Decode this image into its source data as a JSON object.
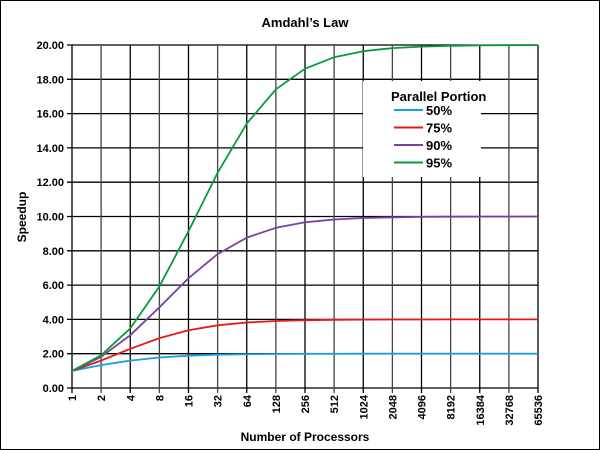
{
  "chart_data": {
    "type": "line",
    "title": "Amdahl’s Law",
    "xlabel": "Number of Processors",
    "ylabel": "Speedup",
    "x_scale": "log2",
    "categories": [
      "1",
      "2",
      "4",
      "8",
      "16",
      "32",
      "64",
      "128",
      "256",
      "512",
      "1024",
      "2048",
      "4096",
      "8192",
      "16384",
      "32768",
      "65536"
    ],
    "y_ticks": [
      "0.00",
      "2.00",
      "4.00",
      "6.00",
      "8.00",
      "10.00",
      "12.00",
      "14.00",
      "16.00",
      "18.00",
      "20.00"
    ],
    "ylim": [
      0,
      20
    ],
    "grid": true,
    "legend": {
      "title": "Parallel Portion",
      "position": "upper right inside"
    },
    "series": [
      {
        "name": "50%",
        "color": "#1a9ee0",
        "values": [
          1.0,
          1.333,
          1.6,
          1.778,
          1.882,
          1.939,
          1.969,
          1.984,
          1.992,
          1.996,
          1.998,
          1.999,
          2.0,
          2.0,
          2.0,
          2.0,
          2.0
        ]
      },
      {
        "name": "75%",
        "color": "#e31a1c",
        "values": [
          1.0,
          1.6,
          2.286,
          2.909,
          3.368,
          3.657,
          3.821,
          3.908,
          3.953,
          3.977,
          3.988,
          3.994,
          3.997,
          3.999,
          3.999,
          4.0,
          4.0
        ]
      },
      {
        "name": "90%",
        "color": "#7b3fa0",
        "values": [
          1.0,
          1.818,
          3.077,
          4.706,
          6.4,
          7.805,
          8.767,
          9.343,
          9.66,
          9.827,
          9.912,
          9.956,
          9.978,
          9.989,
          9.995,
          9.997,
          9.999
        ]
      },
      {
        "name": "95%",
        "color": "#0a9a3a",
        "values": [
          1.0,
          1.905,
          3.478,
          5.926,
          9.143,
          12.549,
          15.422,
          17.415,
          18.618,
          19.284,
          19.637,
          19.818,
          19.908,
          19.954,
          19.977,
          19.988,
          19.994
        ]
      }
    ]
  }
}
